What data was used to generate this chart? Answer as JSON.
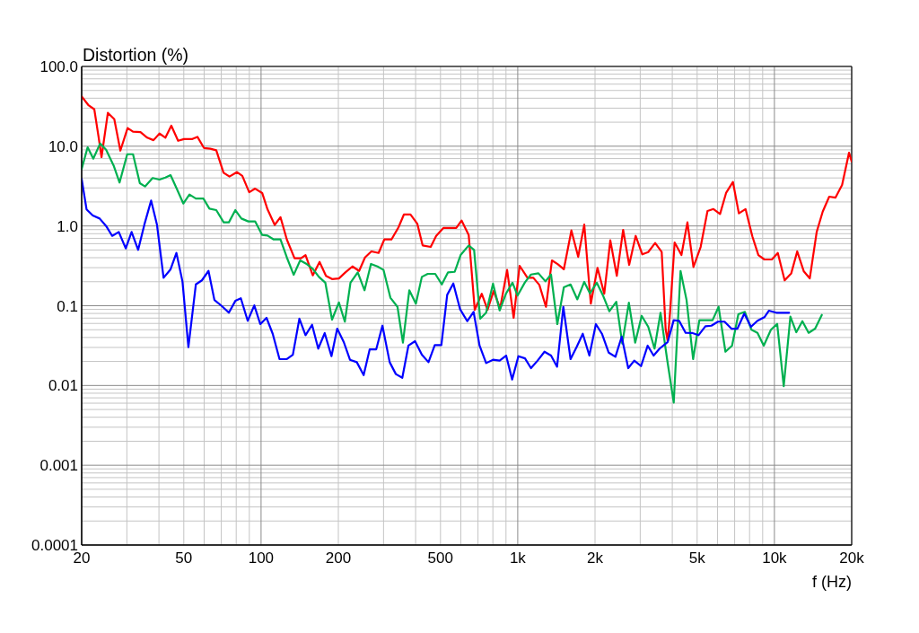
{
  "chart_data": {
    "type": "line",
    "ylabel": "Distortion (%)",
    "xlabel": "f (Hz)",
    "log": "xy",
    "grid": true,
    "line_style": "solid",
    "xlim": [
      20,
      20000
    ],
    "ylim": [
      0.0001,
      100
    ],
    "xticks": [
      20,
      50,
      100,
      200,
      500,
      {
        "value": 1000,
        "label": "1k"
      },
      {
        "value": 2000,
        "label": "2k"
      },
      {
        "value": 5000,
        "label": "5k"
      },
      {
        "value": 10000,
        "label": "10k"
      },
      {
        "value": 20000,
        "label": "20k"
      }
    ],
    "yticks": [
      0.0001,
      0.001,
      0.01,
      0.1,
      {
        "value": 1,
        "label": "1.0"
      },
      {
        "value": 10,
        "label": "10.0"
      },
      {
        "value": 100,
        "label": "100.0"
      }
    ],
    "series": [
      {
        "color": "#ff0000",
        "x": [
          20,
          21.2,
          22.4,
          23.3,
          23.9,
          25.3,
          26.8,
          28.3,
          30.2,
          31.7,
          33.9,
          36,
          38.1,
          40.2,
          42.4,
          44.7,
          47.5,
          50.1,
          54,
          56.5,
          59.9,
          63.4,
          66.9,
          71.4,
          75.3,
          80.5,
          84.5,
          89.9,
          94.8,
          101,
          106,
          113,
          119,
          126,
          135,
          143,
          149,
          159,
          169,
          179,
          189,
          201,
          213,
          227,
          241,
          254,
          269,
          287,
          302,
          322,
          343,
          360,
          382,
          406,
          426,
          458,
          481,
          513,
          576,
          604,
          644,
          680,
          724,
          763,
          805,
          854,
          909,
          964,
          1017,
          1091,
          1150,
          1214,
          1288,
          1359,
          1434,
          1512,
          1618,
          1720,
          1816,
          1926,
          2045,
          2173,
          2294,
          2432,
          2574,
          2717,
          2880,
          3057,
          3224,
          3430,
          3638,
          3769,
          3840,
          3924,
          4085,
          4342,
          4582,
          4836,
          5159,
          5486,
          5788,
          6140,
          6480,
          6893,
          7268,
          7717,
          8204,
          8659,
          9138,
          9768,
          10310,
          10960,
          11630,
          12270,
          13020,
          13730,
          14610,
          15420,
          16350,
          17300,
          18350,
          19530,
          20000
        ],
        "values": [
          42,
          33,
          29,
          12.8,
          7.3,
          26.2,
          21.8,
          8.8,
          16.9,
          15.2,
          15,
          12.8,
          11.9,
          14.4,
          12.8,
          18.1,
          11.7,
          12.3,
          12.3,
          13.1,
          9.5,
          9.3,
          8.9,
          4.66,
          4.16,
          4.73,
          4.24,
          2.65,
          2.94,
          2.59,
          1.61,
          1.03,
          1.29,
          0.677,
          0.393,
          0.393,
          0.43,
          0.24,
          0.354,
          0.237,
          0.216,
          0.22,
          0.262,
          0.311,
          0.273,
          0.403,
          0.48,
          0.459,
          0.677,
          0.677,
          0.959,
          1.39,
          1.39,
          1.07,
          0.57,
          0.546,
          0.751,
          0.942,
          0.942,
          1.17,
          0.771,
          0.0889,
          0.141,
          0.0889,
          0.153,
          0.093,
          0.281,
          0.0705,
          0.317,
          0.224,
          0.224,
          0.182,
          0.0968,
          0.37,
          0.331,
          0.286,
          0.878,
          0.41,
          1.04,
          0.106,
          0.299,
          0.141,
          0.66,
          0.237,
          0.894,
          0.325,
          0.751,
          0.441,
          0.471,
          0.611,
          0.471,
          0.0507,
          0.0359,
          0.0851,
          0.622,
          0.432,
          1.11,
          0.306,
          0.546,
          1.54,
          1.63,
          1.41,
          2.59,
          3.56,
          1.44,
          1.63,
          0.74,
          0.432,
          0.38,
          0.38,
          0.459,
          0.208,
          0.255,
          0.48,
          0.269,
          0.22,
          0.841,
          1.51,
          2.33,
          2.27,
          3.27,
          8.3,
          6.41
        ]
      },
      {
        "color": "#00b050",
        "x": [
          20,
          21.1,
          22.2,
          23.6,
          24.9,
          26.7,
          28.1,
          30.1,
          31.7,
          33.7,
          35.3,
          37.8,
          40.2,
          42.4,
          44.4,
          47.2,
          49.8,
          52.6,
          55.7,
          59.6,
          62.9,
          66.9,
          71.5,
          74.9,
          79.4,
          83.8,
          89.2,
          94.8,
          101,
          106,
          112,
          119,
          126,
          134,
          142,
          151,
          159,
          168,
          178,
          189,
          201,
          212,
          223,
          238,
          253,
          268,
          284,
          300,
          319,
          340,
          357,
          378,
          401,
          423,
          446,
          477,
          506,
          535,
          568,
          599,
          644,
          676,
          714,
          753,
          801,
          850,
          901,
          954,
          998,
          1067,
          1126,
          1204,
          1282,
          1348,
          1426,
          1512,
          1606,
          1707,
          1816,
          1911,
          2033,
          2156,
          2275,
          2421,
          2553,
          2710,
          2867,
          3040,
          3224,
          3411,
          3600,
          3818,
          4052,
          4308,
          4546,
          4822,
          5101,
          5741,
          6060,
          6444,
          6837,
          7235,
          7674,
          8139,
          8590,
          9087,
          9691,
          10250,
          10870,
          11540,
          12170,
          12850,
          13590,
          14410,
          15300
        ],
        "values": [
          5.17,
          9.7,
          6.98,
          10.8,
          9.04,
          5.62,
          3.5,
          7.94,
          7.94,
          3.44,
          3.13,
          3.99,
          3.82,
          4.05,
          4.34,
          2.82,
          1.91,
          2.48,
          2.21,
          2.21,
          1.65,
          1.58,
          1.11,
          1.11,
          1.58,
          1.24,
          1.14,
          1.14,
          0.771,
          0.759,
          0.677,
          0.677,
          0.403,
          0.244,
          0.37,
          0.331,
          0.291,
          0.23,
          0.194,
          0.0669,
          0.11,
          0.0631,
          0.194,
          0.262,
          0.156,
          0.334,
          0.311,
          0.281,
          0.126,
          0.0968,
          0.0344,
          0.156,
          0.106,
          0.23,
          0.251,
          0.251,
          0.185,
          0.262,
          0.266,
          0.432,
          0.57,
          0.501,
          0.0687,
          0.0817,
          0.189,
          0.0873,
          0.143,
          0.194,
          0.134,
          0.197,
          0.246,
          0.255,
          0.202,
          0.246,
          0.0588,
          0.17,
          0.185,
          0.12,
          0.199,
          0.143,
          0.194,
          0.131,
          0.0851,
          0.112,
          0.0335,
          0.109,
          0.0344,
          0.0748,
          0.0543,
          0.029,
          0.0817,
          0.0214,
          0.00611,
          0.273,
          0.118,
          0.0214,
          0.0658,
          0.0658,
          0.0968,
          0.0265,
          0.0316,
          0.0782,
          0.0838,
          0.0499,
          0.0457,
          0.0316,
          0.0499,
          0.0592,
          0.00982,
          0.0729,
          0.0465,
          0.064,
          0.0457,
          0.0516,
          0.0767
        ]
      },
      {
        "color": "#0000ff",
        "x": [
          20,
          20.9,
          22.1,
          23.5,
          24.9,
          26.3,
          27.9,
          29.7,
          31.3,
          33.2,
          35.1,
          37.3,
          39.3,
          41.7,
          44.4,
          46.8,
          49.4,
          52.1,
          55.7,
          58.8,
          62.4,
          65.8,
          70.4,
          74.9,
          79.4,
          83.4,
          88.7,
          94.1,
          99.3,
          105,
          111,
          118,
          126,
          133,
          141,
          149,
          158,
          167,
          177,
          188,
          198,
          210,
          222,
          236,
          251,
          265,
          281,
          297,
          317,
          335,
          355,
          375,
          398,
          423,
          449,
          475,
          504,
          531,
          561,
          596,
          636,
          673,
          710,
          753,
          801,
          850,
          901,
          951,
          1006,
          1067,
          1126,
          1195,
          1271,
          1348,
          1423,
          1505,
          1606,
          1699,
          1792,
          1901,
          2016,
          2128,
          2262,
          2402,
          2541,
          2694,
          2844,
          3023,
          3208,
          3383,
          3571,
          3840,
          4052,
          4253,
          4509,
          4799,
          5061,
          5384,
          5682,
          6026,
          6391,
          6800,
          7178,
          7630,
          8100,
          8590,
          9138,
          9512,
          10170,
          11410
        ],
        "values": [
          3.88,
          1.61,
          1.35,
          1.24,
          1.0,
          0.751,
          0.841,
          0.523,
          0.841,
          0.501,
          1.04,
          2.08,
          1.04,
          0.224,
          0.286,
          0.459,
          0.202,
          0.0302,
          0.185,
          0.208,
          0.273,
          0.118,
          0.0987,
          0.0817,
          0.115,
          0.124,
          0.0647,
          0.101,
          0.0588,
          0.0705,
          0.0445,
          0.0214,
          0.0214,
          0.0243,
          0.0687,
          0.0427,
          0.0577,
          0.029,
          0.0454,
          0.0233,
          0.0516,
          0.035,
          0.021,
          0.0196,
          0.0135,
          0.0284,
          0.0284,
          0.0562,
          0.0196,
          0.0139,
          0.0125,
          0.0316,
          0.0359,
          0.0243,
          0.0196,
          0.0321,
          0.0321,
          0.137,
          0.19,
          0.0906,
          0.064,
          0.0838,
          0.0316,
          0.0191,
          0.021,
          0.0205,
          0.0237,
          0.0119,
          0.0233,
          0.0219,
          0.0165,
          0.0205,
          0.0265,
          0.0237,
          0.0172,
          0.0968,
          0.0214,
          0.0307,
          0.0445,
          0.0237,
          0.0588,
          0.0445,
          0.0258,
          0.0229,
          0.0409,
          0.0165,
          0.0205,
          0.0175,
          0.0316,
          0.0237,
          0.029,
          0.0352,
          0.0658,
          0.0647,
          0.0457,
          0.0454,
          0.0427,
          0.0553,
          0.0562,
          0.0631,
          0.0631,
          0.0516,
          0.0516,
          0.0796,
          0.0543,
          0.0647,
          0.0718,
          0.0867,
          0.0817,
          0.0817
        ]
      }
    ]
  }
}
